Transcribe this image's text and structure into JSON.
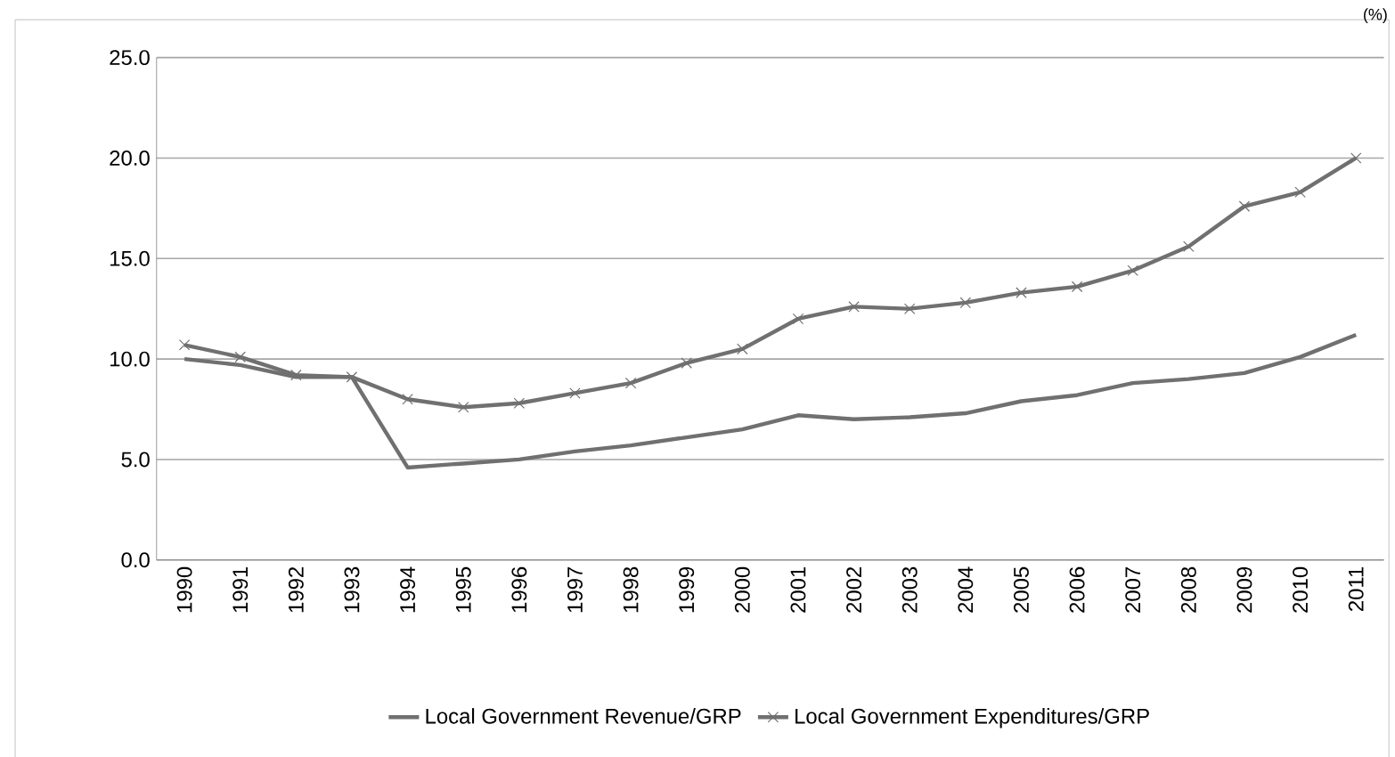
{
  "chart_data": {
    "type": "line",
    "categories": [
      "1990",
      "1991",
      "1992",
      "1993",
      "1994",
      "1995",
      "1996",
      "1997",
      "1998",
      "1999",
      "2000",
      "2001",
      "2002",
      "2003",
      "2004",
      "2005",
      "2006",
      "2007",
      "2008",
      "2009",
      "2010",
      "2011"
    ],
    "series": [
      {
        "name": "Local Government Revenue/GRP",
        "color": "#707070",
        "marker": "none",
        "values": [
          10.0,
          9.7,
          9.1,
          9.1,
          4.6,
          4.8,
          5.0,
          5.4,
          5.7,
          6.1,
          6.5,
          7.2,
          7.0,
          7.1,
          7.3,
          7.9,
          8.2,
          8.8,
          9.0,
          9.3,
          10.1,
          11.2
        ]
      },
      {
        "name": "Local Government Expenditures/GRP",
        "color": "#707070",
        "marker": "cross",
        "values": [
          10.7,
          10.1,
          9.2,
          9.1,
          8.0,
          7.6,
          7.8,
          8.3,
          8.8,
          9.8,
          10.5,
          12.0,
          12.6,
          12.5,
          12.8,
          13.3,
          13.6,
          14.4,
          15.6,
          17.6,
          18.3,
          20.0
        ]
      }
    ],
    "ylim": [
      0,
      25
    ],
    "yticks": [
      {
        "value": 0,
        "label": "0.0"
      },
      {
        "value": 5,
        "label": "5.0"
      },
      {
        "value": 10,
        "label": "10.0"
      },
      {
        "value": 15,
        "label": "15.0"
      },
      {
        "value": 20,
        "label": "20.0"
      },
      {
        "value": 25,
        "label": "25.0"
      }
    ],
    "grid": "y",
    "legend": "bottom",
    "annotations": [
      "(%)"
    ]
  }
}
